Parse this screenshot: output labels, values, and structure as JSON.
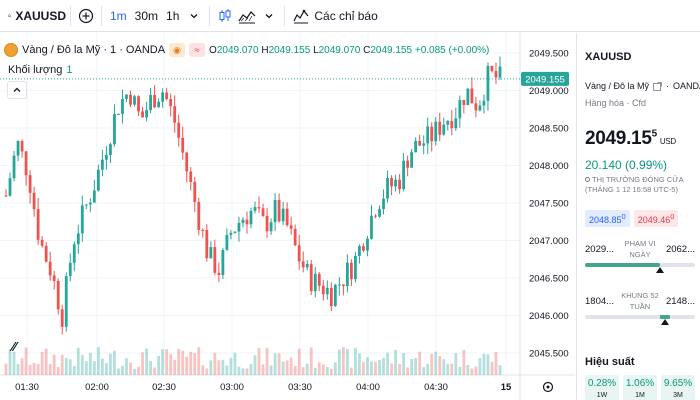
{
  "toolbar": {
    "symbol": "XAUUSD",
    "intervals": [
      "1m",
      "30m",
      "1h"
    ],
    "indicators_label": "Các chỉ báo"
  },
  "legend": {
    "title": "Vàng / Đô la Mỹ · 1 · OANDA",
    "o_label": "O",
    "o": "2049.070",
    "h_label": "H",
    "h": "2049.155",
    "l_label": "L",
    "l": "2049.070",
    "c_label": "C",
    "c": "2049.155",
    "change": "+0.085 (+0.00%)",
    "volume_label": "Khối lượng",
    "volume_value": "1"
  },
  "axis": {
    "price_ticks": [
      "2049.500",
      "2049.000",
      "2048.500",
      "2048.000",
      "2047.500",
      "2047.000",
      "2046.500",
      "2046.000",
      "2045.500"
    ],
    "time_ticks": [
      "01:30",
      "02:00",
      "02:30",
      "03:00",
      "03:30",
      "04:00",
      "04:30",
      "15"
    ],
    "last_price": "2049.155"
  },
  "sidebar": {
    "symbol": "XAUUSD",
    "exchange_name": "Vàng / Đô la Mỹ",
    "exchange": "OANDA",
    "type": "Hàng hóa · Cfd",
    "price_main": "2049.15",
    "price_sup": "5",
    "currency": "USD",
    "change": "20.140 (0.99%)",
    "market_status": "THỊ TRƯỜNG ĐÓNG CỬA",
    "market_time": "(THÁNG 1 12 16:58 UTC-5)",
    "bid": "2048.85",
    "bid_sup": "0",
    "ask": "2049.46",
    "ask_sup": "0",
    "day_low": "2029...",
    "day_high": "2062...",
    "day_label": "PHẠM VI NGÀY",
    "day_position": 0.68,
    "w52_low": "1804...",
    "w52_high": "2148...",
    "w52_label": "KHUNG 52 TUẦN",
    "w52_position": 0.73,
    "perf_title": "Hiệu suất",
    "perf": [
      {
        "value": "0.28%",
        "label": "1W"
      },
      {
        "value": "1.06%",
        "label": "1M"
      },
      {
        "value": "9.65%",
        "label": "3M"
      }
    ]
  },
  "chart_data": {
    "type": "candlestick",
    "symbol": "XAUUSD",
    "interval": "1m",
    "ylim": [
      2045.3,
      2049.6
    ],
    "current_price": 2049.155,
    "x_ticks": [
      "01:30",
      "02:00",
      "02:30",
      "03:00",
      "03:30",
      "04:00",
      "04:30",
      "15"
    ],
    "close_path": [
      2047.6,
      2048.3,
      2047.9,
      2047.0,
      2046.6,
      2046.0,
      2047.0,
      2047.4,
      2047.8,
      2048.3,
      2048.8,
      2049.0,
      2048.6,
      2048.9,
      2049.0,
      2048.6,
      2048.0,
      2047.4,
      2046.8,
      2046.6,
      2047.1,
      2047.3,
      2047.4,
      2047.2,
      2047.4,
      2047.2,
      2046.8,
      2046.5,
      2046.4,
      2046.3,
      2046.5,
      2046.7,
      2047.1,
      2047.5,
      2047.7,
      2047.8,
      2048.2,
      2048.3,
      2048.4,
      2048.6,
      2048.7,
      2049.0,
      2048.8,
      2049.2,
      2049.155
    ]
  }
}
